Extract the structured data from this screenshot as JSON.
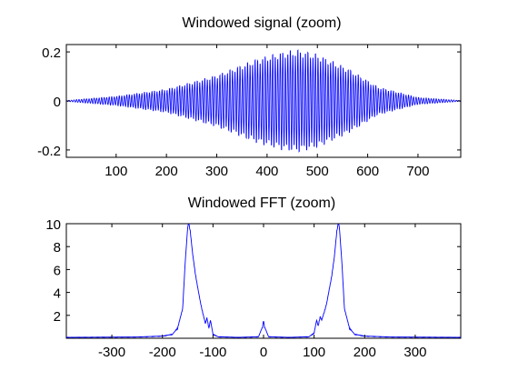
{
  "chart_data": [
    {
      "type": "line",
      "title": "Windowed signal (zoom)",
      "xlabel": "",
      "ylabel": "",
      "xlim": [
        1,
        785
      ],
      "ylim": [
        -0.23,
        0.23
      ],
      "xticks": [
        100,
        200,
        300,
        400,
        500,
        600,
        700
      ],
      "yticks": [
        -0.2,
        0,
        0.2
      ],
      "ytick_labels": [
        "-0.2",
        "0",
        "0.2"
      ],
      "grid": false,
      "line_color": "#0000ff",
      "series": [
        {
          "description": "Hann-windowed high-frequency oscillation; amplitude envelope rises from 0 to a peak near sample 460 and returns to 0",
          "envelope_x": [
            1,
            100,
            200,
            300,
            380,
            430,
            460,
            500,
            560,
            620,
            700,
            785
          ],
          "envelope_y": [
            0.002,
            0.02,
            0.05,
            0.11,
            0.18,
            0.21,
            0.22,
            0.2,
            0.14,
            0.06,
            0.015,
            0.002
          ]
        }
      ]
    },
    {
      "type": "line",
      "title": "Windowed FFT (zoom)",
      "xlabel": "",
      "ylabel": "",
      "xlim": [
        -390,
        390
      ],
      "ylim": [
        0,
        10
      ],
      "xticks": [
        -300,
        -200,
        -100,
        0,
        100,
        200,
        300
      ],
      "yticks": [
        2,
        4,
        6,
        8,
        10
      ],
      "grid": false,
      "line_color": "#0000ff",
      "series": [
        {
          "description": "Magnitude spectrum with two symmetric peaks near ±148 and a small spike at 0",
          "x": [
            -390,
            -250,
            -200,
            -180,
            -170,
            -160,
            -155,
            -150,
            -148,
            -145,
            -140,
            -135,
            -130,
            -125,
            -120,
            -115,
            -112,
            -108,
            -105,
            -100,
            -90,
            -50,
            -10,
            -2,
            0,
            2,
            10,
            50,
            90,
            100,
            105,
            108,
            112,
            115,
            120,
            125,
            130,
            135,
            140,
            145,
            148,
            150,
            155,
            160,
            170,
            180,
            200,
            250,
            390
          ],
          "y": [
            0.05,
            0.08,
            0.15,
            0.3,
            0.8,
            2.5,
            6.5,
            9.6,
            10,
            9.3,
            7.2,
            5.6,
            4.3,
            3.1,
            2.1,
            1.2,
            1.7,
            0.8,
            1.5,
            0.3,
            0.1,
            0.05,
            0.1,
            0.9,
            1.5,
            0.9,
            0.1,
            0.05,
            0.1,
            0.4,
            1.5,
            1.0,
            1.8,
            1.5,
            2.2,
            3.0,
            4.2,
            5.4,
            7.0,
            9.3,
            10,
            9.6,
            6.5,
            2.5,
            0.8,
            0.3,
            0.15,
            0.08,
            0.05
          ]
        }
      ]
    }
  ]
}
